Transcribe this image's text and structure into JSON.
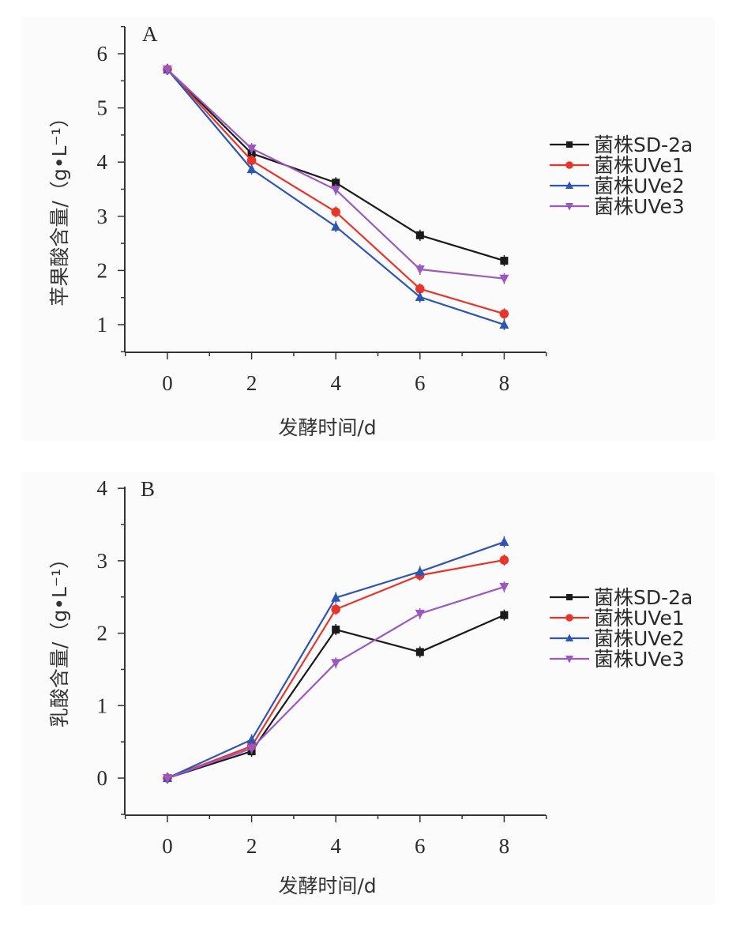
{
  "chart_data": [
    {
      "panel": "A",
      "type": "line",
      "title": "",
      "panel_label": "A",
      "xlabel": "发酵时间/d",
      "ylabel": "苹果酸含量/（g•L⁻¹）",
      "x": [
        0,
        2,
        4,
        6,
        8
      ],
      "xlim": [
        -1,
        9
      ],
      "ylim": [
        0.5,
        6.5
      ],
      "xticks": [
        0,
        2,
        4,
        6,
        8
      ],
      "yticks": [
        1,
        2,
        3,
        4,
        5,
        6
      ],
      "grid": false,
      "legend_position": "right",
      "series": [
        {
          "name": "菌株SD-2a",
          "color": "#1a1a1a",
          "marker": "square",
          "values": [
            5.71,
            4.16,
            3.62,
            2.65,
            2.18
          ]
        },
        {
          "name": "菌株UVe1",
          "color": "#e8352a",
          "marker": "circle",
          "values": [
            5.71,
            4.03,
            3.08,
            1.66,
            1.2
          ]
        },
        {
          "name": "菌株UVe2",
          "color": "#2e55b4",
          "marker": "triangle-up",
          "values": [
            5.71,
            3.87,
            2.81,
            1.51,
            1.0
          ]
        },
        {
          "name": "菌株UVe3",
          "color": "#9b59c0",
          "marker": "triangle-down",
          "values": [
            5.71,
            4.25,
            3.49,
            2.02,
            1.85
          ]
        }
      ]
    },
    {
      "panel": "B",
      "type": "line",
      "title": "",
      "panel_label": "B",
      "xlabel": "发酵时间/d",
      "ylabel": "乳酸含量/（g•L⁻¹）",
      "x": [
        0,
        2,
        4,
        6,
        8
      ],
      "xlim": [
        -1,
        9
      ],
      "ylim": [
        -0.5,
        4
      ],
      "xticks": [
        0,
        2,
        4,
        6,
        8
      ],
      "yticks": [
        0,
        1,
        2,
        3,
        4
      ],
      "grid": false,
      "legend_position": "right",
      "series": [
        {
          "name": "菌株SD-2a",
          "color": "#1a1a1a",
          "marker": "square",
          "values": [
            0.0,
            0.37,
            2.05,
            1.74,
            2.25
          ]
        },
        {
          "name": "菌株UVe1",
          "color": "#e8352a",
          "marker": "circle",
          "values": [
            0.0,
            0.44,
            2.33,
            2.8,
            3.01
          ]
        },
        {
          "name": "菌株UVe2",
          "color": "#2e55b4",
          "marker": "triangle-up",
          "values": [
            0.0,
            0.53,
            2.49,
            2.85,
            3.26
          ]
        },
        {
          "name": "菌株UVe3",
          "color": "#9b59c0",
          "marker": "triangle-down",
          "values": [
            0.0,
            0.41,
            1.59,
            2.27,
            2.64
          ]
        }
      ]
    }
  ]
}
